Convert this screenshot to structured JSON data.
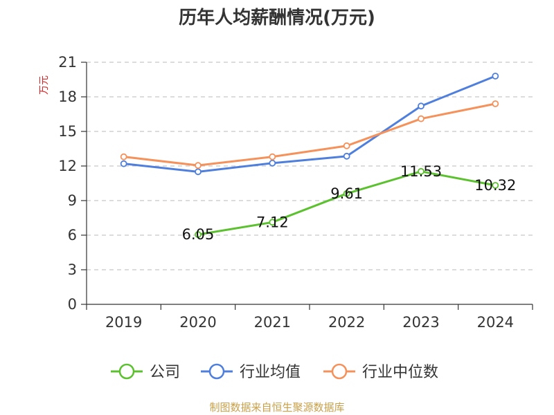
{
  "chart_data": {
    "type": "line",
    "title": "历年人均薪酬情况(万元)",
    "ylabel": "万元",
    "xlabel": "",
    "categories": [
      "2019",
      "2020",
      "2021",
      "2022",
      "2023",
      "2024"
    ],
    "ylim": [
      0,
      21
    ],
    "yticks": [
      0,
      3,
      6,
      9,
      12,
      15,
      18,
      21
    ],
    "grid": true,
    "legend_position": "bottom",
    "series": [
      {
        "name": "公司",
        "color": "#5cc12f",
        "values": [
          null,
          6.05,
          7.12,
          9.61,
          11.53,
          10.32
        ],
        "labels": [
          null,
          "6.05",
          "7.12",
          "9.61",
          "11.53",
          "10.32"
        ]
      },
      {
        "name": "行业均值",
        "color": "#4f7fdc",
        "values": [
          12.2,
          11.5,
          12.25,
          12.85,
          17.2,
          19.8
        ]
      },
      {
        "name": "行业中位数",
        "color": "#f5915a",
        "values": [
          12.8,
          12.05,
          12.8,
          13.75,
          16.1,
          17.4
        ]
      }
    ],
    "source": "制图数据来自恒生聚源数据库"
  }
}
